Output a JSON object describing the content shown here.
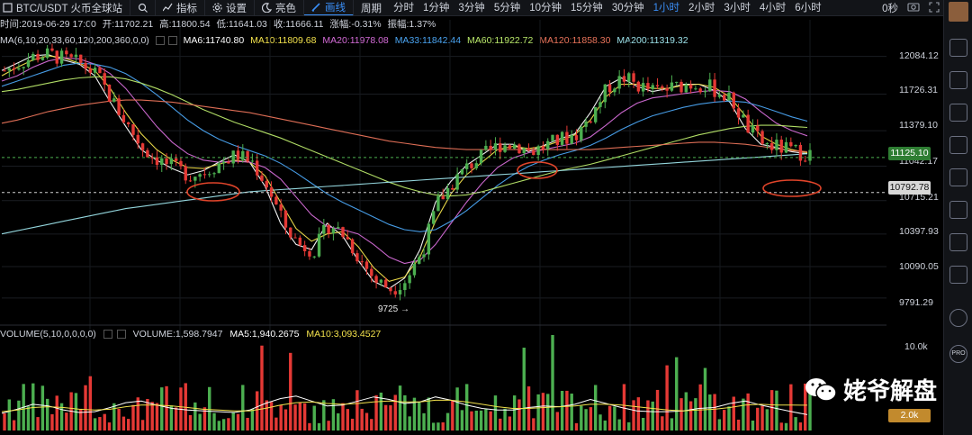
{
  "toolbar": {
    "symbol": "BTC/USDT 火币全球站",
    "indicator_label": "指标",
    "settings_label": "设置",
    "brightness_label": "亮色",
    "draw_label": "画线",
    "period_label": "周期",
    "timeframes": [
      "分时",
      "1分钟",
      "3分钟",
      "5分钟",
      "10分钟",
      "15分钟",
      "30分钟",
      "1小时",
      "2小时",
      "3小时",
      "4小时",
      "6小时"
    ],
    "active_timeframe": "1小时",
    "countdown": "0秒"
  },
  "ohlc": {
    "time_label": "时间:2019-06-29 17:00",
    "open_label": "开:11702.21",
    "high_label": "高:11800.54",
    "low_label": "低:11641.03",
    "close_label": "收:11666.11",
    "change_label": "涨幅:-0.31%",
    "amplitude_label": "振幅:1.37%"
  },
  "ma_line": {
    "params": "MA(6,10,20,33,60,120,200,360,0,0)",
    "ma6": "MA6:11740.80",
    "ma10": "MA10:11809.68",
    "ma20": "MA20:11978.08",
    "ma33": "MA33:11842.44",
    "ma60": "MA60:11922.72",
    "ma120": "MA120:11858.30",
    "ma200": "MA200:11319.32"
  },
  "volume_line": {
    "params": "VOLUME(5,10,0,0,0,0)",
    "volume": "VOLUME:1,598.7947",
    "ma5": "MA5:1,940.2675",
    "ma10": "MA10:3,093.4527"
  },
  "price_axis": [
    "12084.12",
    "11726.31",
    "11379.10",
    "11042.17",
    "10715.21",
    "10397.93",
    "10090.05",
    "9791.29"
  ],
  "current_price": "11125.10",
  "line_price": "10792.78",
  "volume_axis": [
    "10.0k"
  ],
  "volume_tag": "2.0k",
  "low_annotation": "9725",
  "watermark_text": "姥爷解盘",
  "sidebar_pro": "PRO",
  "colors": {
    "up": "#4caf50",
    "down": "#e53935",
    "accent": "#3a8ef6",
    "ma6": "#ffffff",
    "ma10": "#f2e14c",
    "ma20": "#d36bd6",
    "ma33": "#4aa3f0",
    "ma60": "#b9e86a",
    "ma120": "#e9735a",
    "ma200": "#9be0e8",
    "volume_tag": "#c28a2d"
  },
  "chart_data": {
    "type": "candlestick",
    "title": "BTC/USDT 火币全球站",
    "interval": "1小时",
    "y_ticks": [
      12084.12,
      11726.31,
      11379.1,
      11042.17,
      10715.21,
      10397.93,
      10090.05,
      9791.29
    ],
    "ylim": [
      9560,
      12260
    ],
    "current_price": 11125.1,
    "horizontal_line": 10792.78,
    "low_annotation": 9725,
    "series": [
      {
        "name": "MA6",
        "values": [
          11950,
          12020,
          12090,
          12100,
          12050,
          12010,
          11900,
          11650,
          11420,
          11200,
          11100,
          11020,
          10960,
          11000,
          11080,
          11150,
          11080,
          10850,
          10500,
          10300,
          10250,
          10500,
          10380,
          10150,
          9950,
          9880,
          9980,
          10250,
          10700,
          10900,
          11050,
          11150,
          11250,
          11250,
          11180,
          11240,
          11300,
          11350,
          11550,
          11800,
          11880,
          11800,
          11750,
          11780,
          11820,
          11820,
          11760,
          11650,
          11400,
          11250,
          11220,
          11180,
          11160
        ]
      },
      {
        "name": "MA10",
        "values": [
          11900,
          11980,
          12050,
          12090,
          12070,
          12020,
          11950,
          11780,
          11550,
          11350,
          11200,
          11100,
          11030,
          11020,
          11060,
          11100,
          11080,
          10950,
          10700,
          10450,
          10330,
          10400,
          10420,
          10280,
          10080,
          9950,
          9990,
          10180,
          10520,
          10780,
          10960,
          11080,
          11200,
          11230,
          11210,
          11230,
          11280,
          11340,
          11480,
          11700,
          11820,
          11820,
          11780,
          11780,
          11810,
          11820,
          11790,
          11700,
          11520,
          11330,
          11250,
          11200,
          11170
        ]
      },
      {
        "name": "MA20",
        "values": [
          11850,
          11900,
          11980,
          12040,
          12070,
          12060,
          12010,
          11920,
          11780,
          11600,
          11420,
          11270,
          11160,
          11100,
          11080,
          11090,
          11080,
          11030,
          10920,
          10750,
          10580,
          10470,
          10440,
          10400,
          10300,
          10180,
          10120,
          10150,
          10300,
          10500,
          10700,
          10880,
          11030,
          11120,
          11170,
          11200,
          11230,
          11260,
          11320,
          11430,
          11550,
          11640,
          11690,
          11710,
          11730,
          11750,
          11760,
          11750,
          11680,
          11560,
          11450,
          11380,
          11330
        ]
      },
      {
        "name": "MA33",
        "values": [
          11800,
          11850,
          11900,
          11950,
          12000,
          12020,
          12010,
          11980,
          11920,
          11830,
          11720,
          11600,
          11480,
          11380,
          11300,
          11240,
          11190,
          11140,
          11070,
          10980,
          10880,
          10780,
          10700,
          10630,
          10560,
          10490,
          10440,
          10420,
          10440,
          10520,
          10620,
          10740,
          10860,
          10960,
          11040,
          11100,
          11150,
          11190,
          11240,
          11310,
          11390,
          11460,
          11520,
          11560,
          11600,
          11630,
          11650,
          11660,
          11650,
          11610,
          11560,
          11510,
          11470
        ]
      },
      {
        "name": "MA60",
        "values": [
          11750,
          11770,
          11800,
          11830,
          11860,
          11880,
          11890,
          11890,
          11870,
          11830,
          11780,
          11720,
          11650,
          11580,
          11520,
          11460,
          11410,
          11360,
          11310,
          11250,
          11190,
          11130,
          11070,
          11010,
          10950,
          10890,
          10840,
          10800,
          10770,
          10760,
          10770,
          10800,
          10840,
          10880,
          10920,
          10960,
          11000,
          11030,
          11060,
          11100,
          11140,
          11180,
          11220,
          11260,
          11300,
          11340,
          11370,
          11400,
          11420,
          11430,
          11430,
          11420,
          11410
        ]
      },
      {
        "name": "MA120",
        "values": [
          11450,
          11480,
          11520,
          11560,
          11590,
          11620,
          11640,
          11660,
          11670,
          11670,
          11660,
          11650,
          11630,
          11610,
          11590,
          11570,
          11550,
          11520,
          11490,
          11460,
          11430,
          11400,
          11370,
          11340,
          11310,
          11280,
          11260,
          11240,
          11220,
          11210,
          11200,
          11200,
          11200,
          11200,
          11200,
          11200,
          11200,
          11200,
          11200,
          11210,
          11220,
          11230,
          11240,
          11250,
          11260,
          11270,
          11270,
          11260,
          11250,
          11230,
          11210,
          11190,
          11180
        ]
      },
      {
        "name": "MA200",
        "values": [
          10400,
          10430,
          10460,
          10490,
          10520,
          10550,
          10580,
          10610,
          10640,
          10660,
          10680,
          10700,
          10720,
          10740,
          10760,
          10780,
          10800,
          10810,
          10820,
          10830,
          10840,
          10850,
          10860,
          10870,
          10880,
          10890,
          10900,
          10910,
          10920,
          10930,
          10940,
          10950,
          10960,
          10970,
          10980,
          10990,
          11000,
          11010,
          11020,
          11030,
          11040,
          11050,
          11060,
          11070,
          11080,
          11090,
          11100,
          11110,
          11120,
          11130,
          11140,
          11150,
          11160
        ]
      }
    ],
    "volume_series": [
      {
        "name": "MA5",
        "values": [
          2100,
          2600,
          3200,
          3000,
          2500,
          2200,
          2300,
          2800,
          3400,
          3600,
          3100,
          2700,
          2500,
          2400,
          2300,
          2200,
          2500,
          3300,
          3900,
          4200,
          3600,
          3000,
          3100,
          3600,
          4100,
          3800,
          3300,
          3500,
          4100,
          3700,
          3100,
          2700,
          2500,
          2500,
          2800,
          3000,
          2900,
          3200,
          3800,
          3300,
          2800,
          2400,
          2300,
          2300,
          2400,
          2700,
          2800,
          3300,
          3600,
          3100,
          2700,
          2300,
          1940
        ]
      },
      {
        "name": "MA10",
        "values": [
          2300,
          2500,
          2800,
          2900,
          2800,
          2600,
          2500,
          2600,
          2900,
          3100,
          3100,
          3000,
          2800,
          2600,
          2500,
          2400,
          2400,
          2700,
          3100,
          3400,
          3500,
          3300,
          3200,
          3300,
          3500,
          3600,
          3500,
          3500,
          3700,
          3700,
          3500,
          3200,
          2900,
          2700,
          2700,
          2800,
          2900,
          3000,
          3200,
          3200,
          3100,
          2900,
          2700,
          2500,
          2400,
          2500,
          2600,
          2800,
          3100,
          3200,
          3100,
          3100,
          3093
        ]
      }
    ]
  }
}
